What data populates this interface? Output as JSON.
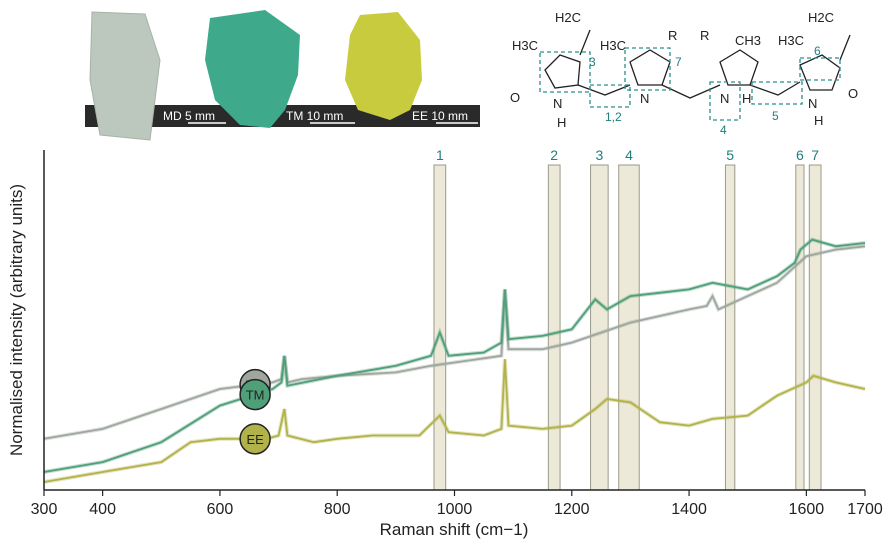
{
  "chart_data": {
    "type": "line",
    "xlabel": "Raman shift (cm−1)",
    "ylabel": "Normalised intensity (arbitrary units)",
    "xlim": [
      300,
      1700
    ],
    "x_ticks": [
      300,
      400,
      600,
      800,
      1000,
      1200,
      1400,
      1600,
      1700
    ],
    "bands": [
      {
        "label": "1",
        "from": 965,
        "to": 985
      },
      {
        "label": "2",
        "from": 1160,
        "to": 1180
      },
      {
        "label": "3",
        "from": 1232,
        "to": 1262
      },
      {
        "label": "4",
        "from": 1280,
        "to": 1315
      },
      {
        "label": "5",
        "from": 1462,
        "to": 1478
      },
      {
        "label": "6",
        "from": 1582,
        "to": 1596
      },
      {
        "label": "7",
        "from": 1605,
        "to": 1625
      }
    ],
    "series": [
      {
        "name": "MD",
        "color": "#9ea69e",
        "points": [
          [
            300,
            0.13
          ],
          [
            400,
            0.16
          ],
          [
            500,
            0.22
          ],
          [
            600,
            0.28
          ],
          [
            690,
            0.3
          ],
          [
            705,
            0.31
          ],
          [
            710,
            0.38
          ],
          [
            715,
            0.3
          ],
          [
            740,
            0.31
          ],
          [
            800,
            0.32
          ],
          [
            900,
            0.33
          ],
          [
            960,
            0.35
          ],
          [
            1000,
            0.36
          ],
          [
            1080,
            0.38
          ],
          [
            1086,
            0.58
          ],
          [
            1092,
            0.4
          ],
          [
            1150,
            0.4
          ],
          [
            1200,
            0.42
          ],
          [
            1250,
            0.45
          ],
          [
            1300,
            0.48
          ],
          [
            1400,
            0.52
          ],
          [
            1430,
            0.53
          ],
          [
            1440,
            0.56
          ],
          [
            1450,
            0.52
          ],
          [
            1500,
            0.56
          ],
          [
            1550,
            0.6
          ],
          [
            1600,
            0.68
          ],
          [
            1650,
            0.7
          ],
          [
            1700,
            0.71
          ]
        ]
      },
      {
        "name": "TM",
        "color": "#4f9f78",
        "points": [
          [
            300,
            0.03
          ],
          [
            400,
            0.06
          ],
          [
            500,
            0.12
          ],
          [
            600,
            0.23
          ],
          [
            690,
            0.28
          ],
          [
            705,
            0.3
          ],
          [
            710,
            0.38
          ],
          [
            715,
            0.29
          ],
          [
            800,
            0.32
          ],
          [
            900,
            0.35
          ],
          [
            960,
            0.38
          ],
          [
            975,
            0.45
          ],
          [
            990,
            0.38
          ],
          [
            1050,
            0.39
          ],
          [
            1080,
            0.42
          ],
          [
            1086,
            0.58
          ],
          [
            1092,
            0.43
          ],
          [
            1150,
            0.44
          ],
          [
            1200,
            0.46
          ],
          [
            1240,
            0.55
          ],
          [
            1260,
            0.52
          ],
          [
            1300,
            0.56
          ],
          [
            1350,
            0.57
          ],
          [
            1400,
            0.58
          ],
          [
            1440,
            0.6
          ],
          [
            1500,
            0.58
          ],
          [
            1550,
            0.62
          ],
          [
            1580,
            0.66
          ],
          [
            1590,
            0.7
          ],
          [
            1610,
            0.73
          ],
          [
            1650,
            0.71
          ],
          [
            1700,
            0.72
          ]
        ]
      },
      {
        "name": "EE",
        "color": "#b2b24a",
        "points": [
          [
            300,
            0.0
          ],
          [
            400,
            0.03
          ],
          [
            500,
            0.06
          ],
          [
            550,
            0.12
          ],
          [
            600,
            0.13
          ],
          [
            680,
            0.13
          ],
          [
            700,
            0.14
          ],
          [
            710,
            0.22
          ],
          [
            715,
            0.14
          ],
          [
            760,
            0.12
          ],
          [
            800,
            0.13
          ],
          [
            860,
            0.14
          ],
          [
            940,
            0.14
          ],
          [
            975,
            0.2
          ],
          [
            990,
            0.15
          ],
          [
            1050,
            0.14
          ],
          [
            1080,
            0.16
          ],
          [
            1086,
            0.37
          ],
          [
            1092,
            0.17
          ],
          [
            1150,
            0.16
          ],
          [
            1200,
            0.17
          ],
          [
            1240,
            0.22
          ],
          [
            1260,
            0.25
          ],
          [
            1300,
            0.24
          ],
          [
            1350,
            0.18
          ],
          [
            1400,
            0.17
          ],
          [
            1440,
            0.19
          ],
          [
            1500,
            0.2
          ],
          [
            1550,
            0.26
          ],
          [
            1600,
            0.3
          ],
          [
            1612,
            0.32
          ],
          [
            1650,
            0.3
          ],
          [
            1700,
            0.28
          ]
        ]
      }
    ]
  },
  "samples": [
    {
      "label": "MD",
      "color": "#9ea69e"
    },
    {
      "label": "TM",
      "color": "#4f9f78"
    },
    {
      "label": "EE",
      "color": "#b2b24a"
    }
  ],
  "photo_strip": {
    "scale_bars": [
      {
        "sample": "MD",
        "length": "5 mm"
      },
      {
        "sample": "TM",
        "length": "10 mm"
      },
      {
        "sample": "EE",
        "length": "10 mm"
      }
    ]
  },
  "structure": {
    "labels": [
      "H2C",
      "H3C",
      "H3C",
      "R",
      "R",
      "CH3",
      "H3C",
      "H2C",
      "O",
      "N",
      "H",
      "N",
      "N",
      "H",
      "N",
      "H",
      "O"
    ],
    "bond_labels": [
      "1,2",
      "3",
      "4",
      "5",
      "6",
      "7"
    ]
  }
}
